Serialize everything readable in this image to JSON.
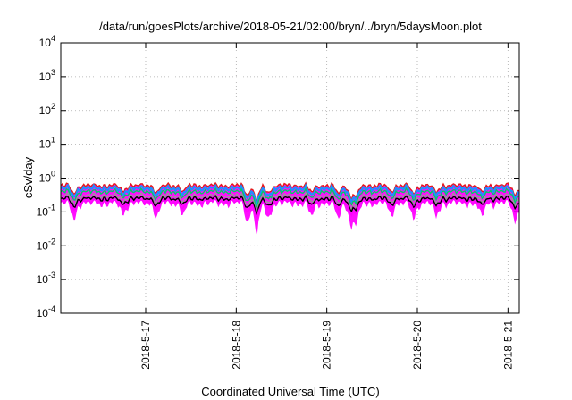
{
  "chart_data": {
    "type": "area",
    "title": "/data/run/goesPlots/archive/2018-05-21/02:00/bryn/../bryn/5daysMoon.plot",
    "xlabel": "Coordinated Universal Time (UTC)",
    "ylabel": "cSv/day",
    "yscale": "log",
    "ylim": [
      0.0001,
      10000
    ],
    "xlim": [
      "2018-05-16T01:30",
      "2018-05-21T03:00"
    ],
    "grid": true,
    "y_ticks": [
      {
        "base": "10",
        "exp": "-4",
        "value": 0.0001
      },
      {
        "base": "10",
        "exp": "-3",
        "value": 0.001
      },
      {
        "base": "10",
        "exp": "-2",
        "value": 0.01
      },
      {
        "base": "10",
        "exp": "-1",
        "value": 0.1
      },
      {
        "base": "10",
        "exp": "0",
        "value": 1
      },
      {
        "base": "10",
        "exp": "1",
        "value": 10
      },
      {
        "base": "10",
        "exp": "2",
        "value": 100
      },
      {
        "base": "10",
        "exp": "3",
        "value": 1000
      },
      {
        "base": "10",
        "exp": "4",
        "value": 10000
      }
    ],
    "x_ticks": [
      {
        "label": "2018-5-17",
        "value": "2018-05-17T00:00"
      },
      {
        "label": "2018-5-18",
        "value": "2018-05-18T00:00"
      },
      {
        "label": "2018-5-19",
        "value": "2018-05-19T00:00"
      },
      {
        "label": "2018-5-20",
        "value": "2018-05-20T00:00"
      },
      {
        "label": "2018-5-21",
        "value": "2018-05-21T00:00"
      }
    ],
    "series": [
      {
        "color": "#e41a1c",
        "level": 0.6
      },
      {
        "color": "#1e90ff",
        "level": 0.5
      },
      {
        "color": "#00cc66",
        "level": 0.4
      },
      {
        "color": "#999999",
        "level": 0.3
      },
      {
        "color": "#000000",
        "level": 0.25
      },
      {
        "color": "#ff00ff",
        "level": 0.2
      }
    ],
    "dips": [
      {
        "t": "2018-05-16T05:00",
        "depth": 0.55
      },
      {
        "t": "2018-05-16T18:00",
        "depth": 0.65
      },
      {
        "t": "2018-05-17T03:00",
        "depth": 0.6
      },
      {
        "t": "2018-05-17T10:00",
        "depth": 0.65
      },
      {
        "t": "2018-05-18T03:00",
        "depth": 0.5
      },
      {
        "t": "2018-05-18T05:30",
        "depth": 0.3
      },
      {
        "t": "2018-05-18T08:30",
        "depth": 0.55
      },
      {
        "t": "2018-05-18T20:00",
        "depth": 0.6
      },
      {
        "t": "2018-05-19T03:00",
        "depth": 0.55
      },
      {
        "t": "2018-05-19T06:30",
        "depth": 0.4
      },
      {
        "t": "2018-05-19T08:00",
        "depth": 0.5
      },
      {
        "t": "2018-05-19T17:00",
        "depth": 0.65
      },
      {
        "t": "2018-05-19T23:00",
        "depth": 0.55
      },
      {
        "t": "2018-05-20T05:00",
        "depth": 0.6
      },
      {
        "t": "2018-05-20T17:00",
        "depth": 0.6
      },
      {
        "t": "2018-05-21T02:00",
        "depth": 0.5
      }
    ]
  }
}
